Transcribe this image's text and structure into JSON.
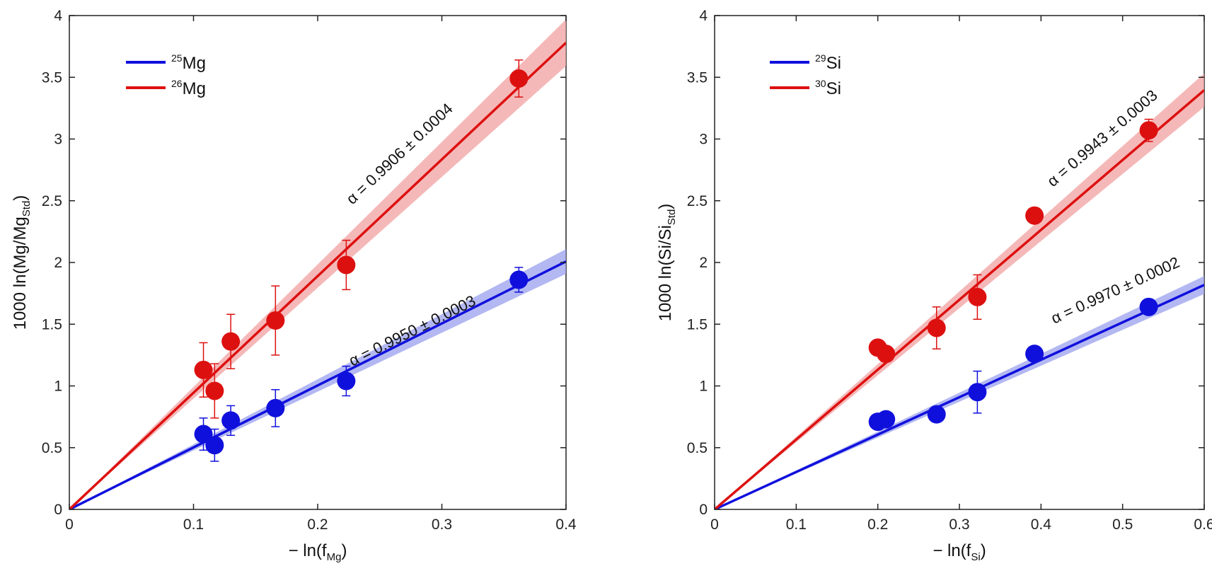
{
  "chart_data": [
    {
      "type": "scatter",
      "xlabel_prefix": "− ln(f",
      "xlabel_sub": "Mg",
      "xlabel_suffix": ")",
      "ylabel_prefix": "1000 ln(Mg/Mg",
      "ylabel_sub": "Std",
      "ylabel_suffix": ")",
      "xlim": [
        0,
        0.4
      ],
      "ylim": [
        0,
        4
      ],
      "xticks": [
        0,
        0.1,
        0.2,
        0.3,
        0.4
      ],
      "xtick_labels": [
        "0",
        "0.1",
        "0.2",
        "0.3",
        "0.4"
      ],
      "yticks": [
        0,
        0.5,
        1,
        1.5,
        2,
        2.5,
        3,
        3.5,
        4
      ],
      "ytick_labels": [
        "0",
        "0.5",
        "1",
        "1.5",
        "2",
        "2.5",
        "3",
        "3.5",
        "4"
      ],
      "legend_position": "top-left",
      "series": [
        {
          "legend_sup": "25",
          "legend_text": "Mg",
          "color": "#1010dd",
          "band_color": "#9aa0ee",
          "slope": 5.02,
          "band_spread": 0.05,
          "annotation": "α = 0.9950 ± 0.0003",
          "points": [
            {
              "x": 0.108,
              "y": 0.61,
              "err": 0.13
            },
            {
              "x": 0.117,
              "y": 0.52,
              "err": 0.13
            },
            {
              "x": 0.13,
              "y": 0.72,
              "err": 0.12
            },
            {
              "x": 0.166,
              "y": 0.82,
              "err": 0.15
            },
            {
              "x": 0.223,
              "y": 1.04,
              "err": 0.12
            },
            {
              "x": 0.362,
              "y": 1.86,
              "err": 0.1
            }
          ]
        },
        {
          "legend_sup": "26",
          "legend_text": "Mg",
          "color": "#dd1010",
          "band_color": "#f2a0a0",
          "slope": 9.45,
          "band_spread": 0.05,
          "annotation": "α = 0.9906 ± 0.0004",
          "points": [
            {
              "x": 0.108,
              "y": 1.13,
              "err": 0.22
            },
            {
              "x": 0.117,
              "y": 0.96,
              "err": 0.22
            },
            {
              "x": 0.13,
              "y": 1.36,
              "err": 0.22
            },
            {
              "x": 0.166,
              "y": 1.53,
              "err": 0.28
            },
            {
              "x": 0.223,
              "y": 1.98,
              "err": 0.2
            },
            {
              "x": 0.362,
              "y": 3.49,
              "err": 0.15
            }
          ]
        }
      ]
    },
    {
      "type": "scatter",
      "xlabel_prefix": "− ln(f",
      "xlabel_sub": "Si",
      "xlabel_suffix": ")",
      "ylabel_prefix": "1000 ln(Si/Si",
      "ylabel_sub": "Std",
      "ylabel_suffix": ")",
      "xlim": [
        0,
        0.6
      ],
      "ylim": [
        0,
        4
      ],
      "xticks": [
        0,
        0.1,
        0.2,
        0.3,
        0.4,
        0.5,
        0.6
      ],
      "xtick_labels": [
        "0",
        "0.1",
        "0.2",
        "0.3",
        "0.4",
        "0.5",
        "0.6"
      ],
      "yticks": [
        0,
        0.5,
        1,
        1.5,
        2,
        2.5,
        3,
        3.5,
        4
      ],
      "ytick_labels": [
        "0",
        "0.5",
        "1",
        "1.5",
        "2",
        "2.5",
        "3",
        "3.5",
        "4"
      ],
      "legend_position": "top-left",
      "series": [
        {
          "legend_sup": "29",
          "legend_text": "Si",
          "color": "#1010dd",
          "band_color": "#9aa0ee",
          "slope": 3.03,
          "band_spread": 0.04,
          "annotation": "α = 0.9970 ± 0.0002",
          "points": [
            {
              "x": 0.2,
              "y": 0.71,
              "err": 0.04
            },
            {
              "x": 0.21,
              "y": 0.73,
              "err": 0.04
            },
            {
              "x": 0.272,
              "y": 0.77,
              "err": 0.04
            },
            {
              "x": 0.322,
              "y": 0.95,
              "err": 0.17
            },
            {
              "x": 0.392,
              "y": 1.26,
              "err": 0.04
            },
            {
              "x": 0.532,
              "y": 1.64,
              "err": 0.04
            }
          ]
        },
        {
          "legend_sup": "30",
          "legend_text": "Si",
          "color": "#dd1010",
          "band_color": "#f2a0a0",
          "slope": 5.66,
          "band_spread": 0.04,
          "annotation": "α = 0.9943 ± 0.0003",
          "points": [
            {
              "x": 0.2,
              "y": 1.31,
              "err": 0.05
            },
            {
              "x": 0.21,
              "y": 1.26,
              "err": 0.05
            },
            {
              "x": 0.272,
              "y": 1.47,
              "err": 0.17
            },
            {
              "x": 0.322,
              "y": 1.72,
              "err": 0.18
            },
            {
              "x": 0.392,
              "y": 2.38,
              "err": 0.05
            },
            {
              "x": 0.532,
              "y": 3.07,
              "err": 0.09
            }
          ]
        }
      ]
    }
  ]
}
